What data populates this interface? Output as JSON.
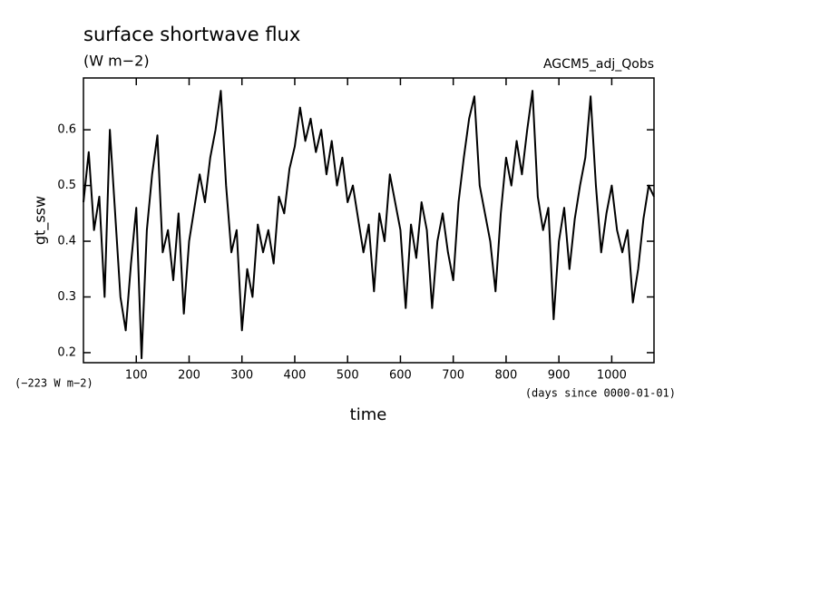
{
  "chart_data": {
    "type": "line",
    "title": "surface shortwave flux",
    "subtitle": "(W m−2)",
    "annotations": [
      "AGCM5_adj_Qobs",
      "(−223 W m−2)",
      "(days since 0000-01-01)"
    ],
    "y_label": "gt_ssw",
    "x_label": "time",
    "xlim": [
      0,
      1080
    ],
    "xticks": [
      100,
      200,
      300,
      400,
      500,
      600,
      700,
      800,
      900,
      1000
    ],
    "ylim": [
      0.182,
      0.693
    ],
    "yticks": [
      0.2,
      0.3,
      0.4,
      0.5,
      0.6
    ],
    "x": [
      0,
      10,
      20,
      30,
      40,
      50,
      60,
      70,
      80,
      90,
      100,
      110,
      120,
      130,
      140,
      150,
      160,
      170,
      180,
      190,
      200,
      210,
      220,
      230,
      240,
      250,
      260,
      270,
      280,
      290,
      300,
      310,
      320,
      330,
      340,
      350,
      360,
      370,
      380,
      390,
      400,
      410,
      420,
      430,
      440,
      450,
      460,
      470,
      480,
      490,
      500,
      510,
      520,
      530,
      540,
      550,
      560,
      570,
      580,
      590,
      600,
      610,
      620,
      630,
      640,
      650,
      660,
      670,
      680,
      690,
      700,
      710,
      720,
      730,
      740,
      750,
      760,
      770,
      780,
      790,
      800,
      810,
      820,
      830,
      840,
      850,
      860,
      870,
      880,
      890,
      900,
      910,
      920,
      930,
      940,
      950,
      960,
      970,
      980,
      990,
      1000,
      1010,
      1020,
      1030,
      1040,
      1050,
      1060,
      1070,
      1080
    ],
    "series": [
      {
        "color": "#000000",
        "values": [
          0.47,
          0.56,
          0.42,
          0.48,
          0.3,
          0.6,
          0.45,
          0.3,
          0.24,
          0.36,
          0.46,
          0.19,
          0.42,
          0.52,
          0.59,
          0.38,
          0.42,
          0.33,
          0.45,
          0.27,
          0.4,
          0.46,
          0.52,
          0.47,
          0.55,
          0.6,
          0.67,
          0.5,
          0.38,
          0.42,
          0.24,
          0.35,
          0.3,
          0.43,
          0.38,
          0.42,
          0.36,
          0.48,
          0.45,
          0.53,
          0.57,
          0.64,
          0.58,
          0.62,
          0.56,
          0.6,
          0.52,
          0.58,
          0.5,
          0.55,
          0.47,
          0.5,
          0.44,
          0.38,
          0.43,
          0.31,
          0.45,
          0.4,
          0.52,
          0.47,
          0.42,
          0.28,
          0.43,
          0.37,
          0.47,
          0.42,
          0.28,
          0.4,
          0.45,
          0.38,
          0.33,
          0.47,
          0.55,
          0.62,
          0.66,
          0.5,
          0.45,
          0.4,
          0.31,
          0.45,
          0.55,
          0.5,
          0.58,
          0.52,
          0.6,
          0.67,
          0.48,
          0.42,
          0.46,
          0.26,
          0.4,
          0.46,
          0.35,
          0.44,
          0.5,
          0.55,
          0.66,
          0.5,
          0.38,
          0.45,
          0.5,
          0.42,
          0.38,
          0.42,
          0.29,
          0.35,
          0.44,
          0.5,
          0.48
        ]
      }
    ]
  }
}
